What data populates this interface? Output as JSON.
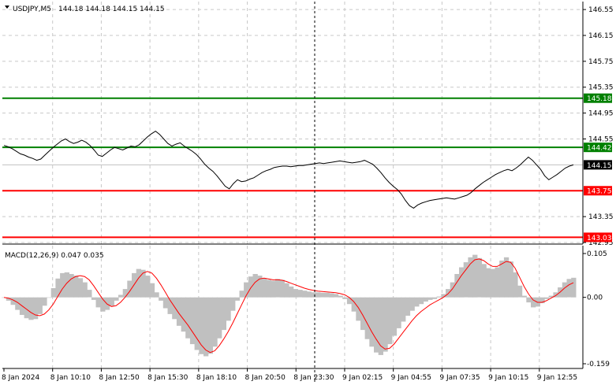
{
  "header": {
    "symbol": "USDJPY,M5",
    "ohlc": "144.18 144.18 144.15 144.15",
    "macd_label": "MACD(12,26,9) 0.047 0.035"
  },
  "colors": {
    "background": "#ffffff",
    "price_line": "#000000",
    "resistance": "#008000",
    "support": "#ff0000",
    "histogram": "#c0c0c0",
    "signal": "#ff0000",
    "current_price_tag": "#000000"
  },
  "chart_data": [
    {
      "type": "line",
      "title": "",
      "ylim": [
        142.95,
        146.6
      ],
      "y_ticks": [
        "146.55",
        "146.15",
        "145.75",
        "145.35",
        "144.95",
        "144.55",
        "143.35",
        "142.95"
      ],
      "x_ticks": [
        "8 Jan 2024",
        "8 Jan 10:10",
        "8 Jan 12:50",
        "8 Jan 15:30",
        "8 Jan 18:10",
        "8 Jan 20:50",
        "8 Jan 23:30",
        "9 Jan 02:15",
        "9 Jan 04:55",
        "9 Jan 07:35",
        "9 Jan 10:15",
        "9 Jan 12:55"
      ],
      "levels": [
        {
          "label": "145.18",
          "value": 145.18,
          "kind": "resistance"
        },
        {
          "label": "144.42",
          "value": 144.42,
          "kind": "resistance"
        },
        {
          "label": "143.75",
          "value": 143.75,
          "kind": "support"
        },
        {
          "label": "143.03",
          "value": 143.03,
          "kind": "support"
        }
      ],
      "current_price": {
        "label": "144.15",
        "value": 144.15
      },
      "series": [
        {
          "values": [
            144.45,
            144.43,
            144.4,
            144.36,
            144.32,
            144.3,
            144.27,
            144.25,
            144.22,
            144.24,
            144.3,
            144.36,
            144.42,
            144.47,
            144.52,
            144.55,
            144.51,
            144.48,
            144.5,
            144.53,
            144.5,
            144.45,
            144.38,
            144.3,
            144.28,
            144.33,
            144.38,
            144.42,
            144.4,
            144.38,
            144.41,
            144.44,
            144.43,
            144.46,
            144.52,
            144.58,
            144.63,
            144.67,
            144.62,
            144.55,
            144.48,
            144.44,
            144.47,
            144.49,
            144.44,
            144.4,
            144.36,
            144.31,
            144.24,
            144.16,
            144.1,
            144.05,
            143.98,
            143.9,
            143.82,
            143.78,
            143.86,
            143.92,
            143.89,
            143.9,
            143.93,
            143.95,
            143.99,
            144.03,
            144.06,
            144.08,
            144.11,
            144.12,
            144.13,
            144.13,
            144.12,
            144.13,
            144.14,
            144.14,
            144.15,
            144.16,
            144.17,
            144.18,
            144.17,
            144.18,
            144.19,
            144.2,
            144.21,
            144.2,
            144.19,
            144.18,
            144.19,
            144.2,
            144.22,
            144.19,
            144.16,
            144.1,
            144.03,
            143.95,
            143.88,
            143.82,
            143.77,
            143.7,
            143.6,
            143.52,
            143.48,
            143.53,
            143.56,
            143.58,
            143.6,
            143.61,
            143.62,
            143.63,
            143.64,
            143.63,
            143.62,
            143.64,
            143.66,
            143.68,
            143.72,
            143.78,
            143.83,
            143.88,
            143.92,
            143.96,
            144.0,
            144.03,
            144.06,
            144.08,
            144.06,
            144.1,
            144.15,
            144.21,
            144.27,
            144.22,
            144.15,
            144.08,
            143.98,
            143.92,
            143.96,
            144.0,
            144.05,
            144.1,
            144.13,
            144.15
          ]
        }
      ]
    },
    {
      "type": "bar",
      "title": "MACD(12,26,9) 0.047 0.035",
      "ylim": [
        -0.159,
        0.105
      ],
      "y_ticks": [
        "0.105",
        "0.00",
        "-0.159"
      ],
      "series": [
        {
          "name": "MACD",
          "values": [
            0.0,
            -0.008,
            -0.018,
            -0.03,
            -0.042,
            -0.05,
            -0.054,
            -0.052,
            -0.04,
            -0.02,
            0.0,
            0.022,
            0.045,
            0.058,
            0.06,
            0.056,
            0.052,
            0.046,
            0.036,
            0.018,
            -0.006,
            -0.024,
            -0.034,
            -0.03,
            -0.02,
            -0.008,
            0.006,
            0.02,
            0.04,
            0.058,
            0.068,
            0.066,
            0.052,
            0.034,
            0.012,
            -0.008,
            -0.026,
            -0.04,
            -0.052,
            -0.068,
            -0.082,
            -0.098,
            -0.112,
            -0.126,
            -0.136,
            -0.141,
            -0.135,
            -0.118,
            -0.098,
            -0.078,
            -0.056,
            -0.032,
            -0.008,
            0.016,
            0.036,
            0.05,
            0.056,
            0.052,
            0.046,
            0.042,
            0.04,
            0.044,
            0.042,
            0.034,
            0.026,
            0.02,
            0.018,
            0.016,
            0.014,
            0.012,
            0.012,
            0.011,
            0.011,
            0.01,
            0.008,
            0.004,
            -0.004,
            -0.016,
            -0.034,
            -0.056,
            -0.078,
            -0.1,
            -0.118,
            -0.132,
            -0.138,
            -0.13,
            -0.112,
            -0.092,
            -0.074,
            -0.058,
            -0.044,
            -0.032,
            -0.022,
            -0.016,
            -0.01,
            -0.006,
            -0.004,
            0.002,
            0.008,
            0.02,
            0.036,
            0.056,
            0.072,
            0.084,
            0.096,
            0.102,
            0.094,
            0.08,
            0.07,
            0.068,
            0.072,
            0.088,
            0.096,
            0.086,
            0.06,
            0.028,
            0.004,
            -0.012,
            -0.024,
            -0.022,
            -0.014,
            -0.004,
            0.004,
            0.012,
            0.024,
            0.036,
            0.044,
            0.047
          ]
        },
        {
          "name": "Signal",
          "values": [
            0.0,
            -0.002,
            -0.006,
            -0.012,
            -0.02,
            -0.028,
            -0.036,
            -0.042,
            -0.044,
            -0.04,
            -0.03,
            -0.016,
            0.002,
            0.02,
            0.034,
            0.044,
            0.05,
            0.052,
            0.05,
            0.042,
            0.028,
            0.012,
            -0.004,
            -0.016,
            -0.022,
            -0.02,
            -0.012,
            0.0,
            0.014,
            0.03,
            0.046,
            0.058,
            0.062,
            0.058,
            0.046,
            0.03,
            0.012,
            -0.006,
            -0.022,
            -0.038,
            -0.052,
            -0.066,
            -0.082,
            -0.098,
            -0.114,
            -0.126,
            -0.132,
            -0.128,
            -0.116,
            -0.1,
            -0.082,
            -0.062,
            -0.04,
            -0.018,
            0.004,
            0.022,
            0.036,
            0.044,
            0.046,
            0.044,
            0.042,
            0.042,
            0.041,
            0.038,
            0.034,
            0.03,
            0.026,
            0.022,
            0.019,
            0.017,
            0.015,
            0.014,
            0.013,
            0.012,
            0.011,
            0.009,
            0.006,
            0.0,
            -0.01,
            -0.024,
            -0.042,
            -0.062,
            -0.082,
            -0.1,
            -0.116,
            -0.124,
            -0.122,
            -0.112,
            -0.098,
            -0.084,
            -0.07,
            -0.056,
            -0.044,
            -0.034,
            -0.026,
            -0.018,
            -0.012,
            -0.006,
            0.0,
            0.008,
            0.02,
            0.036,
            0.052,
            0.066,
            0.08,
            0.09,
            0.092,
            0.088,
            0.08,
            0.074,
            0.074,
            0.08,
            0.086,
            0.084,
            0.07,
            0.048,
            0.026,
            0.008,
            -0.006,
            -0.012,
            -0.012,
            -0.008,
            -0.002,
            0.004,
            0.012,
            0.022,
            0.03,
            0.035
          ]
        }
      ]
    }
  ]
}
